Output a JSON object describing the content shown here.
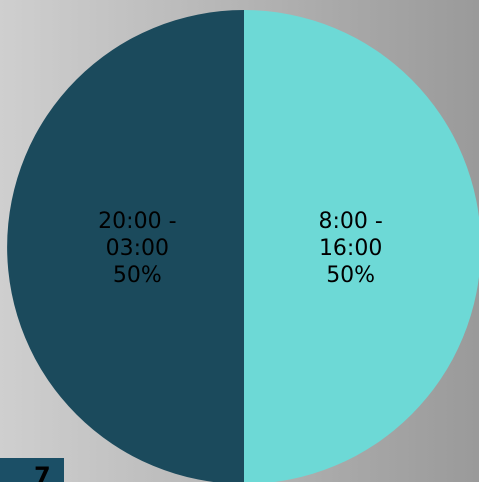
{
  "chart_data": {
    "type": "pie",
    "title": "",
    "slices": [
      {
        "label_lines": [
          "8:00 -",
          "16:00",
          "50%"
        ],
        "category": "8:00 - 16:00",
        "value": 50,
        "color": "#6dd9d6"
      },
      {
        "label_lines": [
          "20:00 -",
          "03:00",
          "50%"
        ],
        "category": "20:00 - 03:00",
        "value": 50,
        "color": "#1b4a5c"
      }
    ],
    "legend": "none"
  },
  "footer_tab": {
    "glyph": "7",
    "color": "#1b4f66"
  }
}
